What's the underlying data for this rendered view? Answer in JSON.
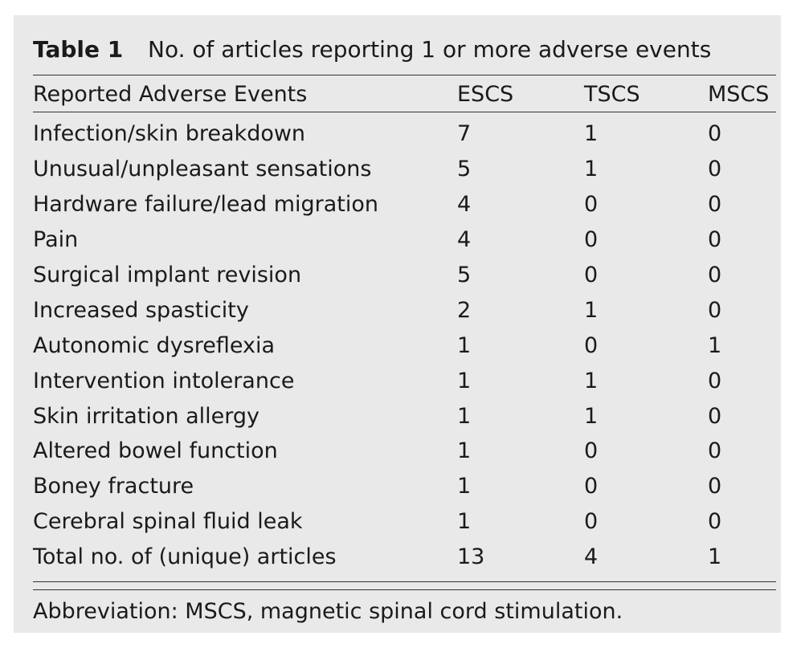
{
  "table": {
    "label": "Table 1",
    "title": "No. of articles reporting 1 or more adverse events",
    "columns": [
      "Reported Adverse Events",
      "ESCS",
      "TSCS",
      "MSCS"
    ],
    "rows": [
      {
        "event": "Infection/skin breakdown",
        "escs": "7",
        "tscs": "1",
        "mscs": "0"
      },
      {
        "event": "Unusual/unpleasant sensations",
        "escs": "5",
        "tscs": "1",
        "mscs": "0"
      },
      {
        "event": "Hardware failure/lead migration",
        "escs": "4",
        "tscs": "0",
        "mscs": "0"
      },
      {
        "event": "Pain",
        "escs": "4",
        "tscs": "0",
        "mscs": "0"
      },
      {
        "event": "Surgical implant revision",
        "escs": "5",
        "tscs": "0",
        "mscs": "0"
      },
      {
        "event": "Increased spasticity",
        "escs": "2",
        "tscs": "1",
        "mscs": "0"
      },
      {
        "event": "Autonomic dysreflexia",
        "escs": "1",
        "tscs": "0",
        "mscs": "1"
      },
      {
        "event": "Intervention intolerance",
        "escs": "1",
        "tscs": "1",
        "mscs": "0"
      },
      {
        "event": "Skin irritation allergy",
        "escs": "1",
        "tscs": "1",
        "mscs": "0"
      },
      {
        "event": "Altered bowel function",
        "escs": "1",
        "tscs": "0",
        "mscs": "0"
      },
      {
        "event": "Boney fracture",
        "escs": "1",
        "tscs": "0",
        "mscs": "0"
      },
      {
        "event": "Cerebral spinal fluid leak",
        "escs": "1",
        "tscs": "0",
        "mscs": "0"
      },
      {
        "event": "Total no. of (unique) articles",
        "escs": "13",
        "tscs": "4",
        "mscs": "1"
      }
    ],
    "footnote": "Abbreviation: MSCS, magnetic spinal cord stimulation."
  },
  "colors": {
    "panel_background": "#e9e9e9",
    "text": "#1a1a1a",
    "rule": "#333333"
  }
}
